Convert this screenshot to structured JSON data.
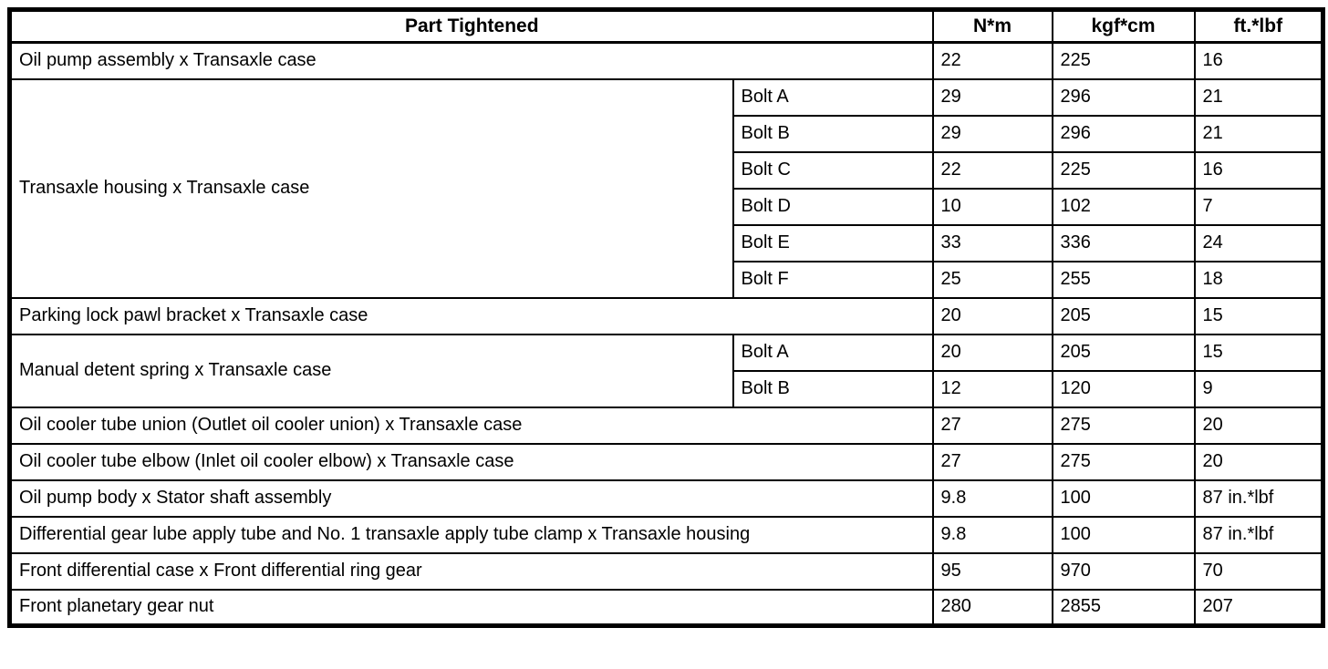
{
  "colors": {
    "border": "#000000",
    "background": "#ffffff",
    "text": "#000000"
  },
  "table": {
    "headers": {
      "part": "Part Tightened",
      "nm": "N*m",
      "kgfcm": "kgf*cm",
      "ftlbf": "ft.*lbf"
    },
    "rows": [
      {
        "part": "Oil pump assembly x Transaxle case",
        "rowspan": 1,
        "sub": null,
        "nm": "22",
        "kgfcm": "225",
        "ftlbf": "16"
      },
      {
        "part": "Transaxle housing x Transaxle case",
        "rowspan": 6,
        "sub": "Bolt A",
        "nm": "29",
        "kgfcm": "296",
        "ftlbf": "21"
      },
      {
        "part": null,
        "sub": "Bolt B",
        "nm": "29",
        "kgfcm": "296",
        "ftlbf": "21"
      },
      {
        "part": null,
        "sub": "Bolt C",
        "nm": "22",
        "kgfcm": "225",
        "ftlbf": "16"
      },
      {
        "part": null,
        "sub": "Bolt D",
        "nm": "10",
        "kgfcm": "102",
        "ftlbf": "7"
      },
      {
        "part": null,
        "sub": "Bolt E",
        "nm": "33",
        "kgfcm": "336",
        "ftlbf": "24"
      },
      {
        "part": null,
        "sub": "Bolt F",
        "nm": "25",
        "kgfcm": "255",
        "ftlbf": "18"
      },
      {
        "part": "Parking lock pawl bracket x Transaxle case",
        "rowspan": 1,
        "sub": null,
        "nm": "20",
        "kgfcm": "205",
        "ftlbf": "15"
      },
      {
        "part": "Manual detent spring x Transaxle case",
        "rowspan": 2,
        "sub": "Bolt A",
        "nm": "20",
        "kgfcm": "205",
        "ftlbf": "15"
      },
      {
        "part": null,
        "sub": "Bolt B",
        "nm": "12",
        "kgfcm": "120",
        "ftlbf": "9"
      },
      {
        "part": "Oil cooler tube union (Outlet oil cooler union) x Transaxle case",
        "rowspan": 1,
        "sub": null,
        "nm": "27",
        "kgfcm": "275",
        "ftlbf": "20"
      },
      {
        "part": "Oil cooler tube elbow (Inlet oil cooler elbow) x Transaxle case",
        "rowspan": 1,
        "sub": null,
        "nm": "27",
        "kgfcm": "275",
        "ftlbf": "20"
      },
      {
        "part": "Oil pump body x Stator shaft assembly",
        "rowspan": 1,
        "sub": null,
        "nm": "9.8",
        "kgfcm": "100",
        "ftlbf": "87 in.*lbf"
      },
      {
        "part": "Differential gear lube apply tube and No. 1 transaxle apply tube clamp x Transaxle housing",
        "rowspan": 1,
        "sub": null,
        "nm": "9.8",
        "kgfcm": "100",
        "ftlbf": "87 in.*lbf"
      },
      {
        "part": "Front differential case x Front differential ring gear",
        "rowspan": 1,
        "sub": null,
        "nm": "95",
        "kgfcm": "970",
        "ftlbf": "70"
      },
      {
        "part": "Front planetary gear nut",
        "rowspan": 1,
        "sub": null,
        "nm": "280",
        "kgfcm": "2855",
        "ftlbf": "207"
      }
    ]
  }
}
